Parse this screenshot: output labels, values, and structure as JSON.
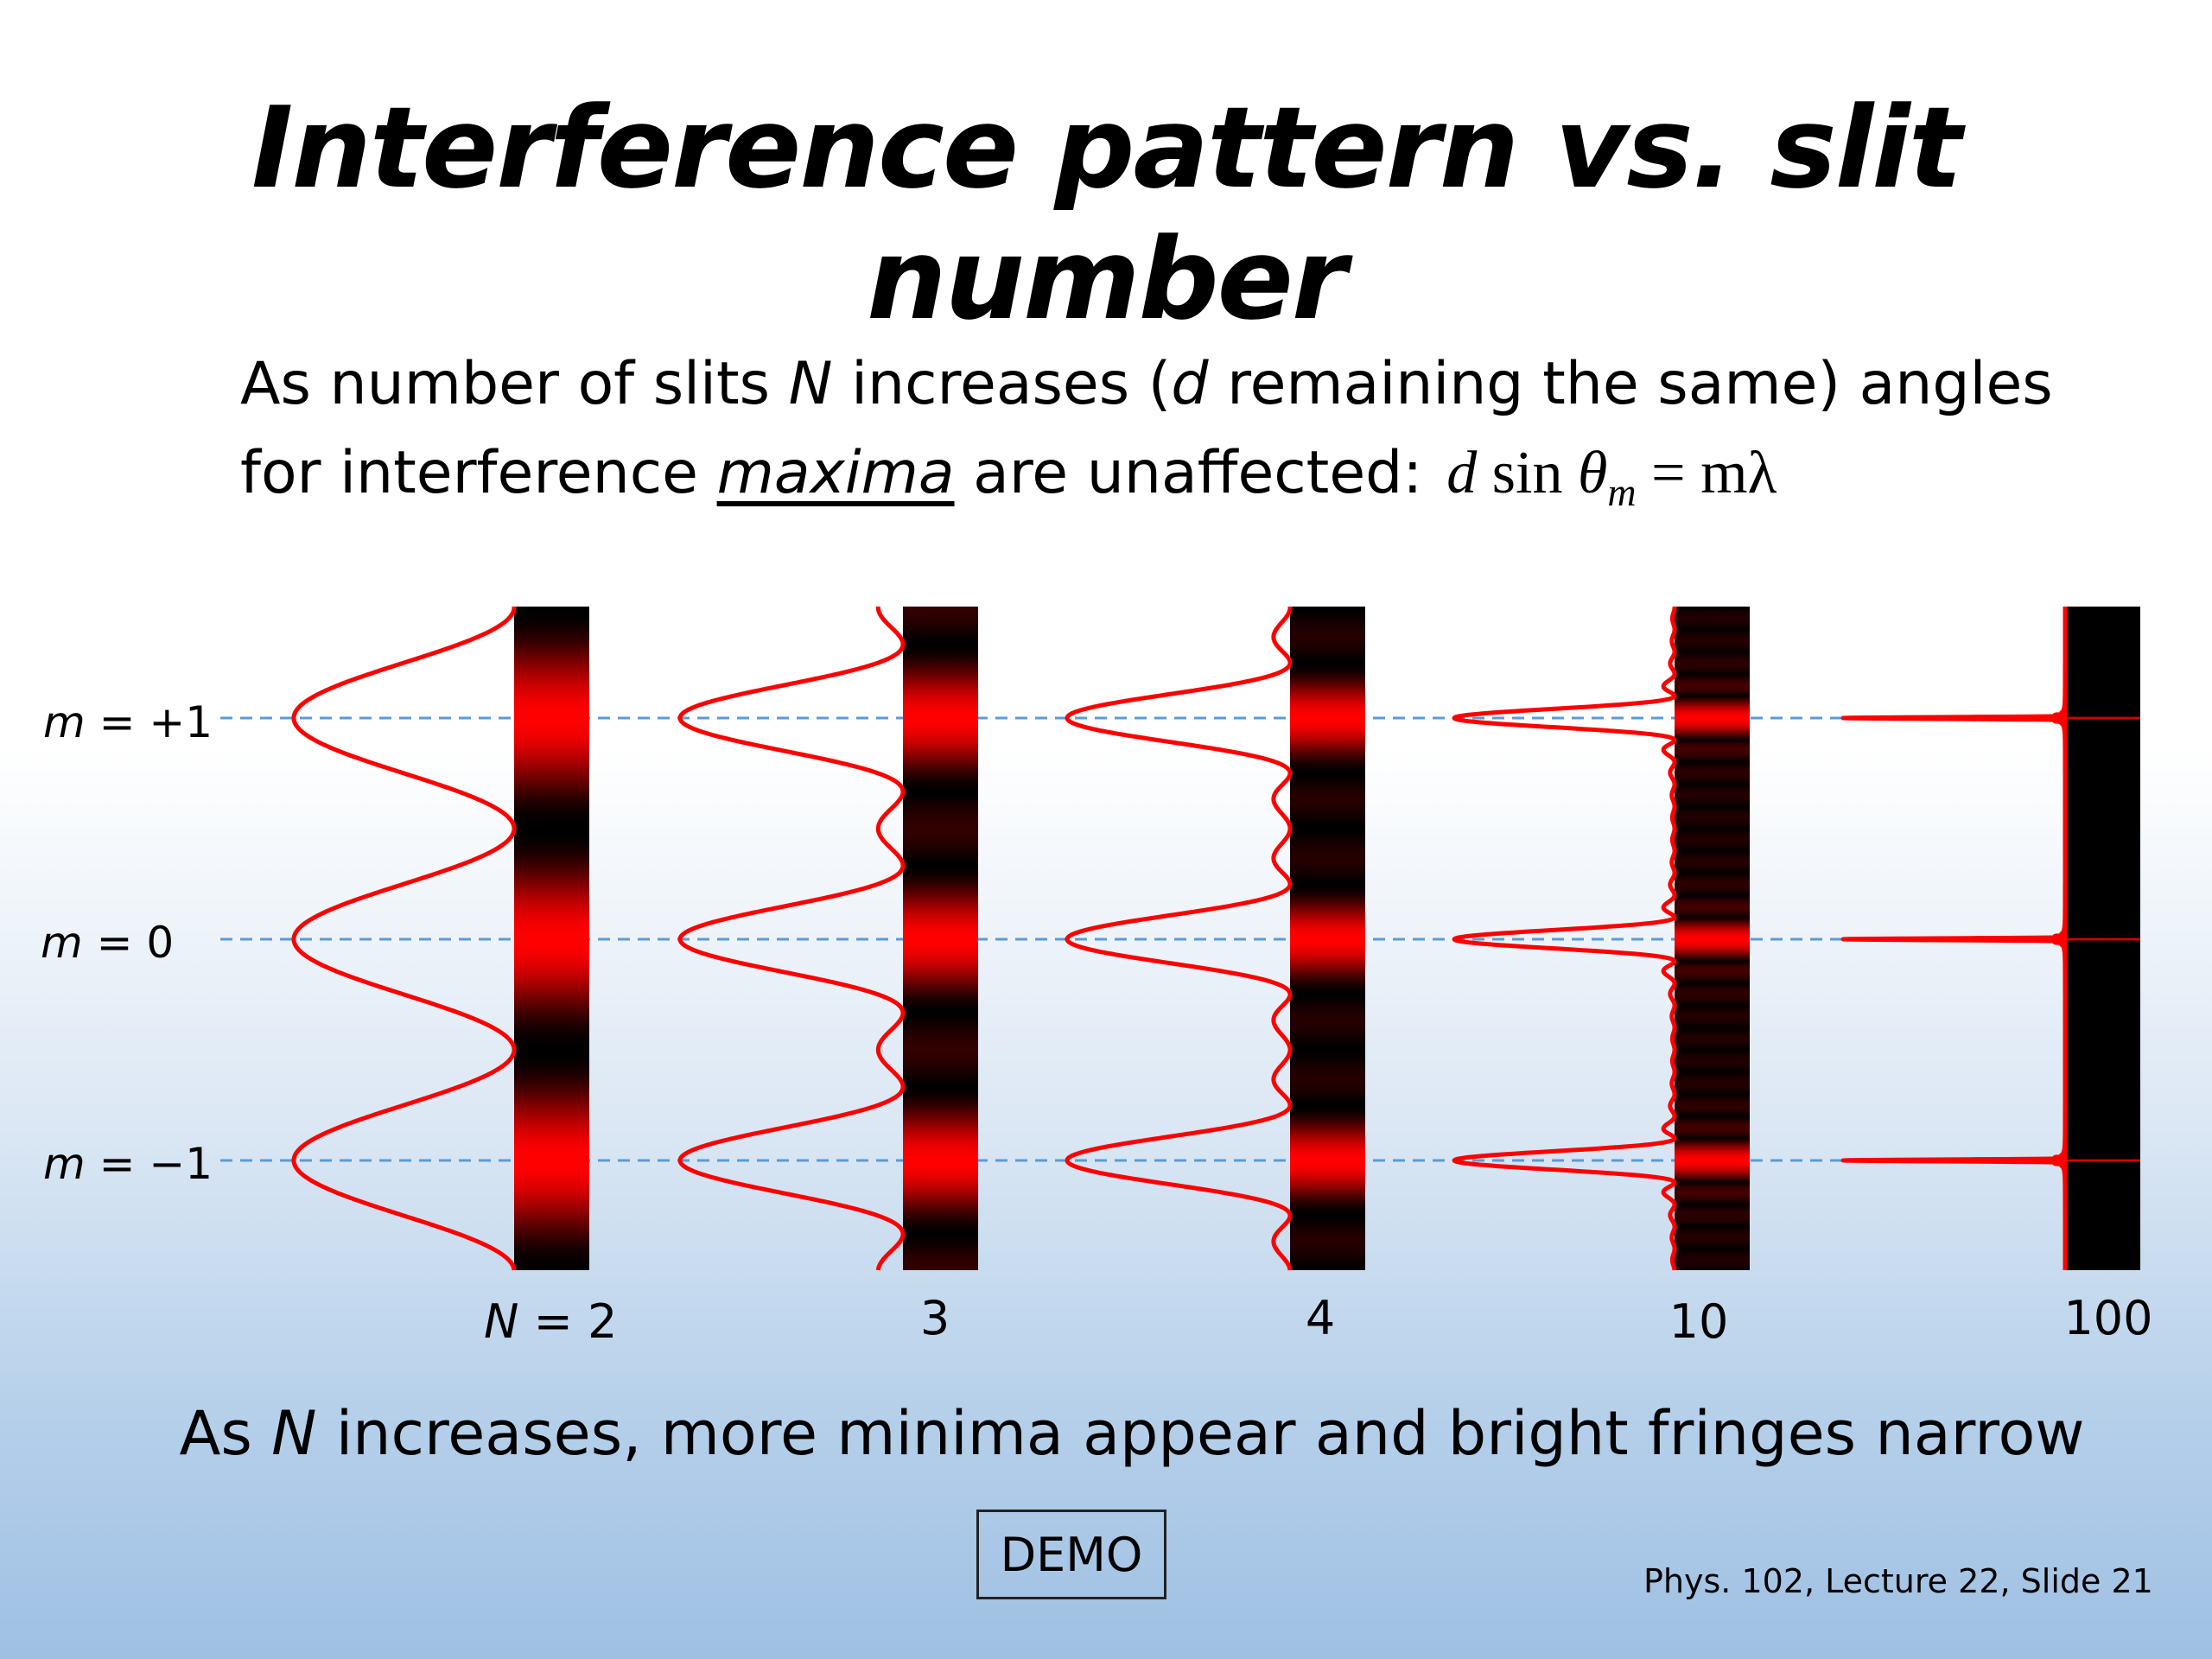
{
  "slide": {
    "title": "Interference pattern vs. slit number",
    "line1": {
      "a": "As number of slits ",
      "N": "N",
      "b": " increases (",
      "d": "d",
      "c": " remaining the same) angles"
    },
    "line2": {
      "a": "for interference ",
      "maxima": "maxima",
      "b": " are unaffected:"
    },
    "equation": {
      "d": "d",
      "sin": " sin ",
      "theta": "θ",
      "sub": "m",
      "rhs": " = mλ"
    },
    "order_labels": {
      "plus1": {
        "m": "m",
        "rest": " = +1"
      },
      "zero": {
        "m": "m",
        "rest": " = 0"
      },
      "minus1": {
        "m": "m",
        "rest": " = −1"
      }
    },
    "panels": [
      {
        "N": 2,
        "label_prefix": "N",
        "label": " = 2"
      },
      {
        "N": 3,
        "label": "3"
      },
      {
        "N": 4,
        "label": "4"
      },
      {
        "N": 10,
        "label": "10"
      },
      {
        "N": 100,
        "label": "100"
      }
    ],
    "conclusion": {
      "a": "As ",
      "N": "N",
      "b": " increases, more minima appear and bright fringes narrow"
    },
    "demo_button": "DEMO",
    "footer": "Phys. 102, Lecture 22, Slide 21",
    "colors": {
      "curve": "#ff0000",
      "fringe_bright": "#ff0000",
      "fringe_dark": "#000000",
      "guide_line": "#5b9bd5"
    }
  }
}
